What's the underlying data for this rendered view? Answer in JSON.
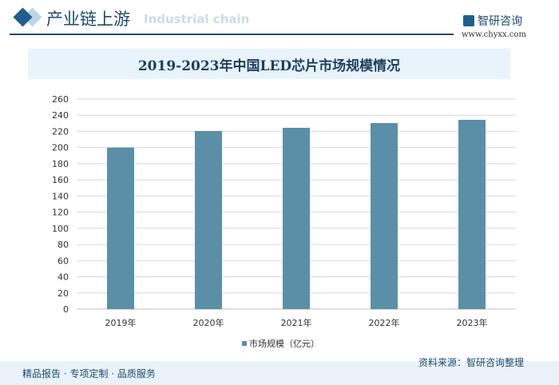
{
  "header": {
    "title": "产业链上游",
    "subtitle": "Industrial chain",
    "logo": "智研咨询",
    "url": "www.chyxx.com"
  },
  "footer": {
    "left": "精品报告 · 专项定制 · 品质服务",
    "source": "资料来源：智研咨询整理"
  },
  "colors": {
    "bar": "#5b8fa8",
    "grid": "#d9d9d9"
  },
  "chart_data": {
    "type": "bar",
    "title": "2019-2023年中国LED芯片市场规模情况",
    "categories": [
      "2019年",
      "2020年",
      "2021年",
      "2022年",
      "2023年"
    ],
    "series": [
      {
        "name": "市场规模（亿元）",
        "values": [
          200,
          220.5,
          224.4,
          230.3,
          234.3
        ]
      }
    ],
    "ylim": [
      0,
      260
    ],
    "yticks": [
      0,
      20,
      40,
      60,
      80,
      100,
      120,
      140,
      160,
      180,
      200,
      220,
      240,
      260
    ],
    "grid": true,
    "legend": "bottom"
  }
}
